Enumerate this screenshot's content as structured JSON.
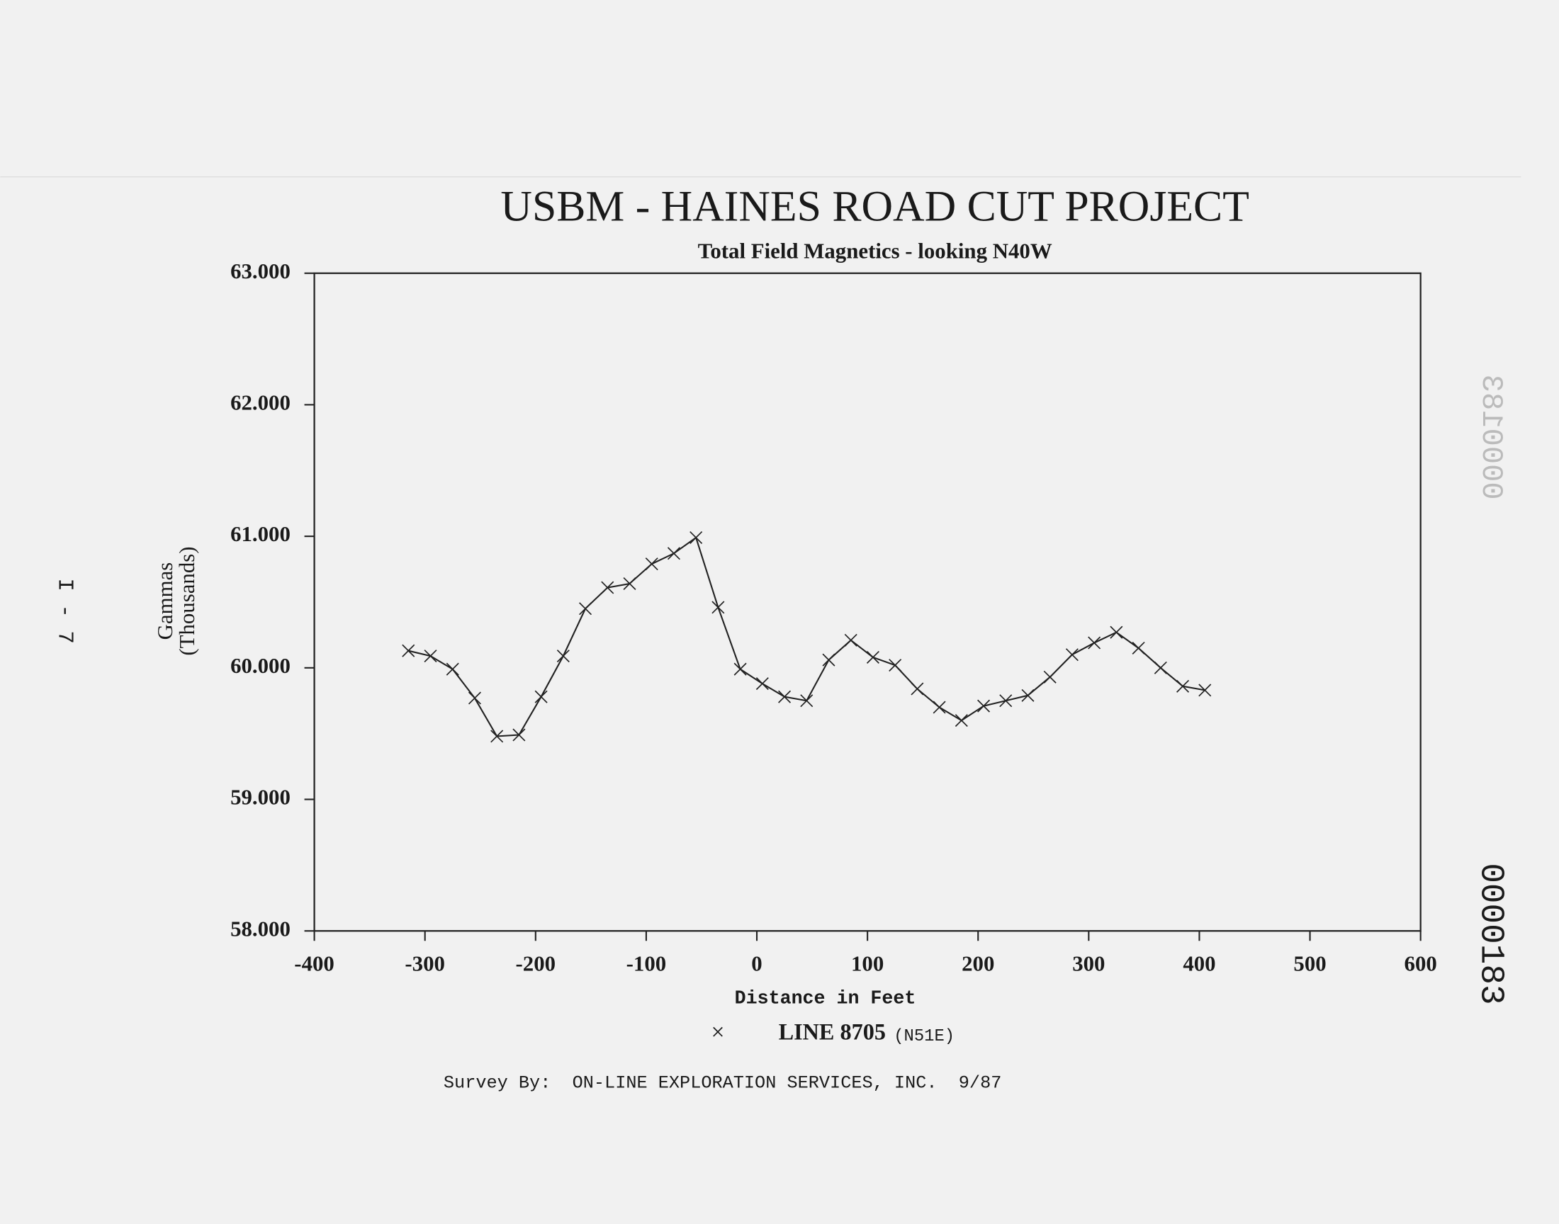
{
  "chart_data": {
    "type": "line",
    "title": "USBM - HAINES ROAD CUT PROJECT",
    "subtitle": "Total Field Magnetics - looking N40W",
    "y_label": [
      "Gammas",
      "(Thousands)"
    ],
    "x_label": "Distance in Feet",
    "x": [
      -315,
      -295,
      -275,
      -255,
      -235,
      -215,
      -195,
      -175,
      -155,
      -135,
      -115,
      -95,
      -75,
      -55,
      -35,
      -15,
      5,
      25,
      45,
      65,
      85,
      105,
      125,
      145,
      165,
      185,
      205,
      225,
      245,
      265,
      285,
      305,
      325,
      345,
      365,
      385,
      405
    ],
    "series": [
      {
        "name": "LINE 8705",
        "color": "#222222",
        "marker": "x",
        "values": [
          60.13,
          60.09,
          59.99,
          59.77,
          59.48,
          59.49,
          59.78,
          60.09,
          60.45,
          60.61,
          60.64,
          60.79,
          60.87,
          60.99,
          60.46,
          59.99,
          59.88,
          59.78,
          59.75,
          60.06,
          60.21,
          60.08,
          60.02,
          59.84,
          59.7,
          59.6,
          59.71,
          59.75,
          59.79,
          59.93,
          60.1,
          60.19,
          60.27,
          60.15,
          60.0,
          59.86,
          59.83
        ]
      }
    ],
    "legend_suffix": "(N51E)",
    "xlim": [
      -400,
      600
    ],
    "xticks": [
      -400,
      -300,
      -200,
      -100,
      0,
      100,
      200,
      300,
      400,
      500,
      600
    ],
    "ylim": [
      58,
      63
    ],
    "yticks": [
      {
        "value": 58,
        "label": "58.000"
      },
      {
        "value": 59,
        "label": "59.000"
      },
      {
        "value": 60,
        "label": "60.000"
      },
      {
        "value": 61,
        "label": "61.000"
      },
      {
        "value": 62,
        "label": "62.000"
      },
      {
        "value": 63,
        "label": "63.000"
      }
    ],
    "grid": false
  },
  "page": {
    "footer": "Survey By:  ON-LINE EXPLORATION SERVICES, INC.  9/87",
    "side_label": "I - 7",
    "stamp": "0000183"
  }
}
